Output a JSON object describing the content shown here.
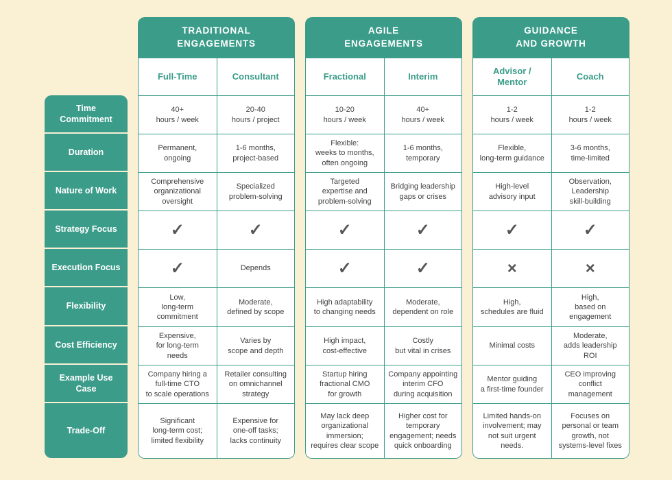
{
  "colors": {
    "accent_teal": "#3B9C8A",
    "background_cream": "#FAF0D4",
    "mark_gray": "#565656",
    "cell_white": "#FFFFFF"
  },
  "sidebar": {
    "rows": [
      "Time\nCommitment",
      "Duration",
      "Nature of Work",
      "Strategy Focus",
      "Execution Focus",
      "Flexibility",
      "Cost Efficiency",
      "Example Use\nCase",
      "Trade-Off"
    ]
  },
  "groups": [
    {
      "title_line1": "TRADITIONAL",
      "title_line2": "ENGAGEMENTS",
      "columns": [
        {
          "name": "Full-Time",
          "cells": [
            "40+\nhours / week",
            "Permanent,\nongoing",
            "Comprehensive\norganizational\noversight",
            "✓",
            "✓",
            "Low,\nlong-term\ncommitment",
            "Expensive,\nfor long-term\nneeds",
            "Company hiring a\nfull-time CTO\nto scale operations",
            "Significant\nlong-term cost;\nlimited flexibility"
          ]
        },
        {
          "name": "Consultant",
          "cells": [
            "20-40\nhours / project",
            "1-6 months,\nproject-based",
            "Specialized\nproblem-solving",
            "✓",
            "Depends",
            "Moderate,\ndefined by scope",
            "Varies by\nscope and depth",
            "Retailer consulting\non omnichannel\nstrategy",
            "Expensive for\none-off tasks;\nlacks continuity"
          ]
        }
      ]
    },
    {
      "title_line1": "AGILE",
      "title_line2": "ENGAGEMENTS",
      "columns": [
        {
          "name": "Fractional",
          "cells": [
            "10-20\nhours / week",
            "Flexible:\nweeks to months,\noften ongoing",
            "Targeted\nexpertise and\nproblem-solving",
            "✓",
            "✓",
            "High adaptability\nto changing needs",
            "High impact,\ncost-effective",
            "Startup hiring\nfractional CMO\nfor growth",
            "May lack deep\norganizational\nimmersion;\nrequires clear scope"
          ]
        },
        {
          "name": "Interim",
          "cells": [
            "40+\nhours / week",
            "1-6 months,\ntemporary",
            "Bridging leadership\ngaps or crises",
            "✓",
            "✓",
            "Moderate,\ndependent on role",
            "Costly\nbut vital in crises",
            "Company appointing\ninterim CFO\nduring acquisition",
            "Higher cost for\ntemporary\nengagement; needs\nquick onboarding"
          ]
        }
      ]
    },
    {
      "title_line1": "GUIDANCE",
      "title_line2": "AND GROWTH",
      "columns": [
        {
          "name": "Advisor /\nMentor",
          "cells": [
            "1-2\nhours / week",
            "Flexible,\nlong-term guidance",
            "High-level\nadvisory input",
            "✓",
            "×",
            "High,\nschedules are fluid",
            "Minimal costs",
            "Mentor guiding\na first-time founder",
            "Limited hands-on\ninvolvement; may\nnot suit urgent\nneeds."
          ]
        },
        {
          "name": "Coach",
          "cells": [
            "1-2\nhours / week",
            "3-6 months,\ntime-limited",
            "Observation,\nLeadership\nskill-building",
            "✓",
            "×",
            "High,\nbased on\nengagement",
            "Moderate,\nadds leadership\nROI",
            "CEO improving\nconflict\nmanagement",
            "Focuses on\npersonal or team\ngrowth, not\nsystems-level fixes"
          ]
        }
      ]
    }
  ]
}
